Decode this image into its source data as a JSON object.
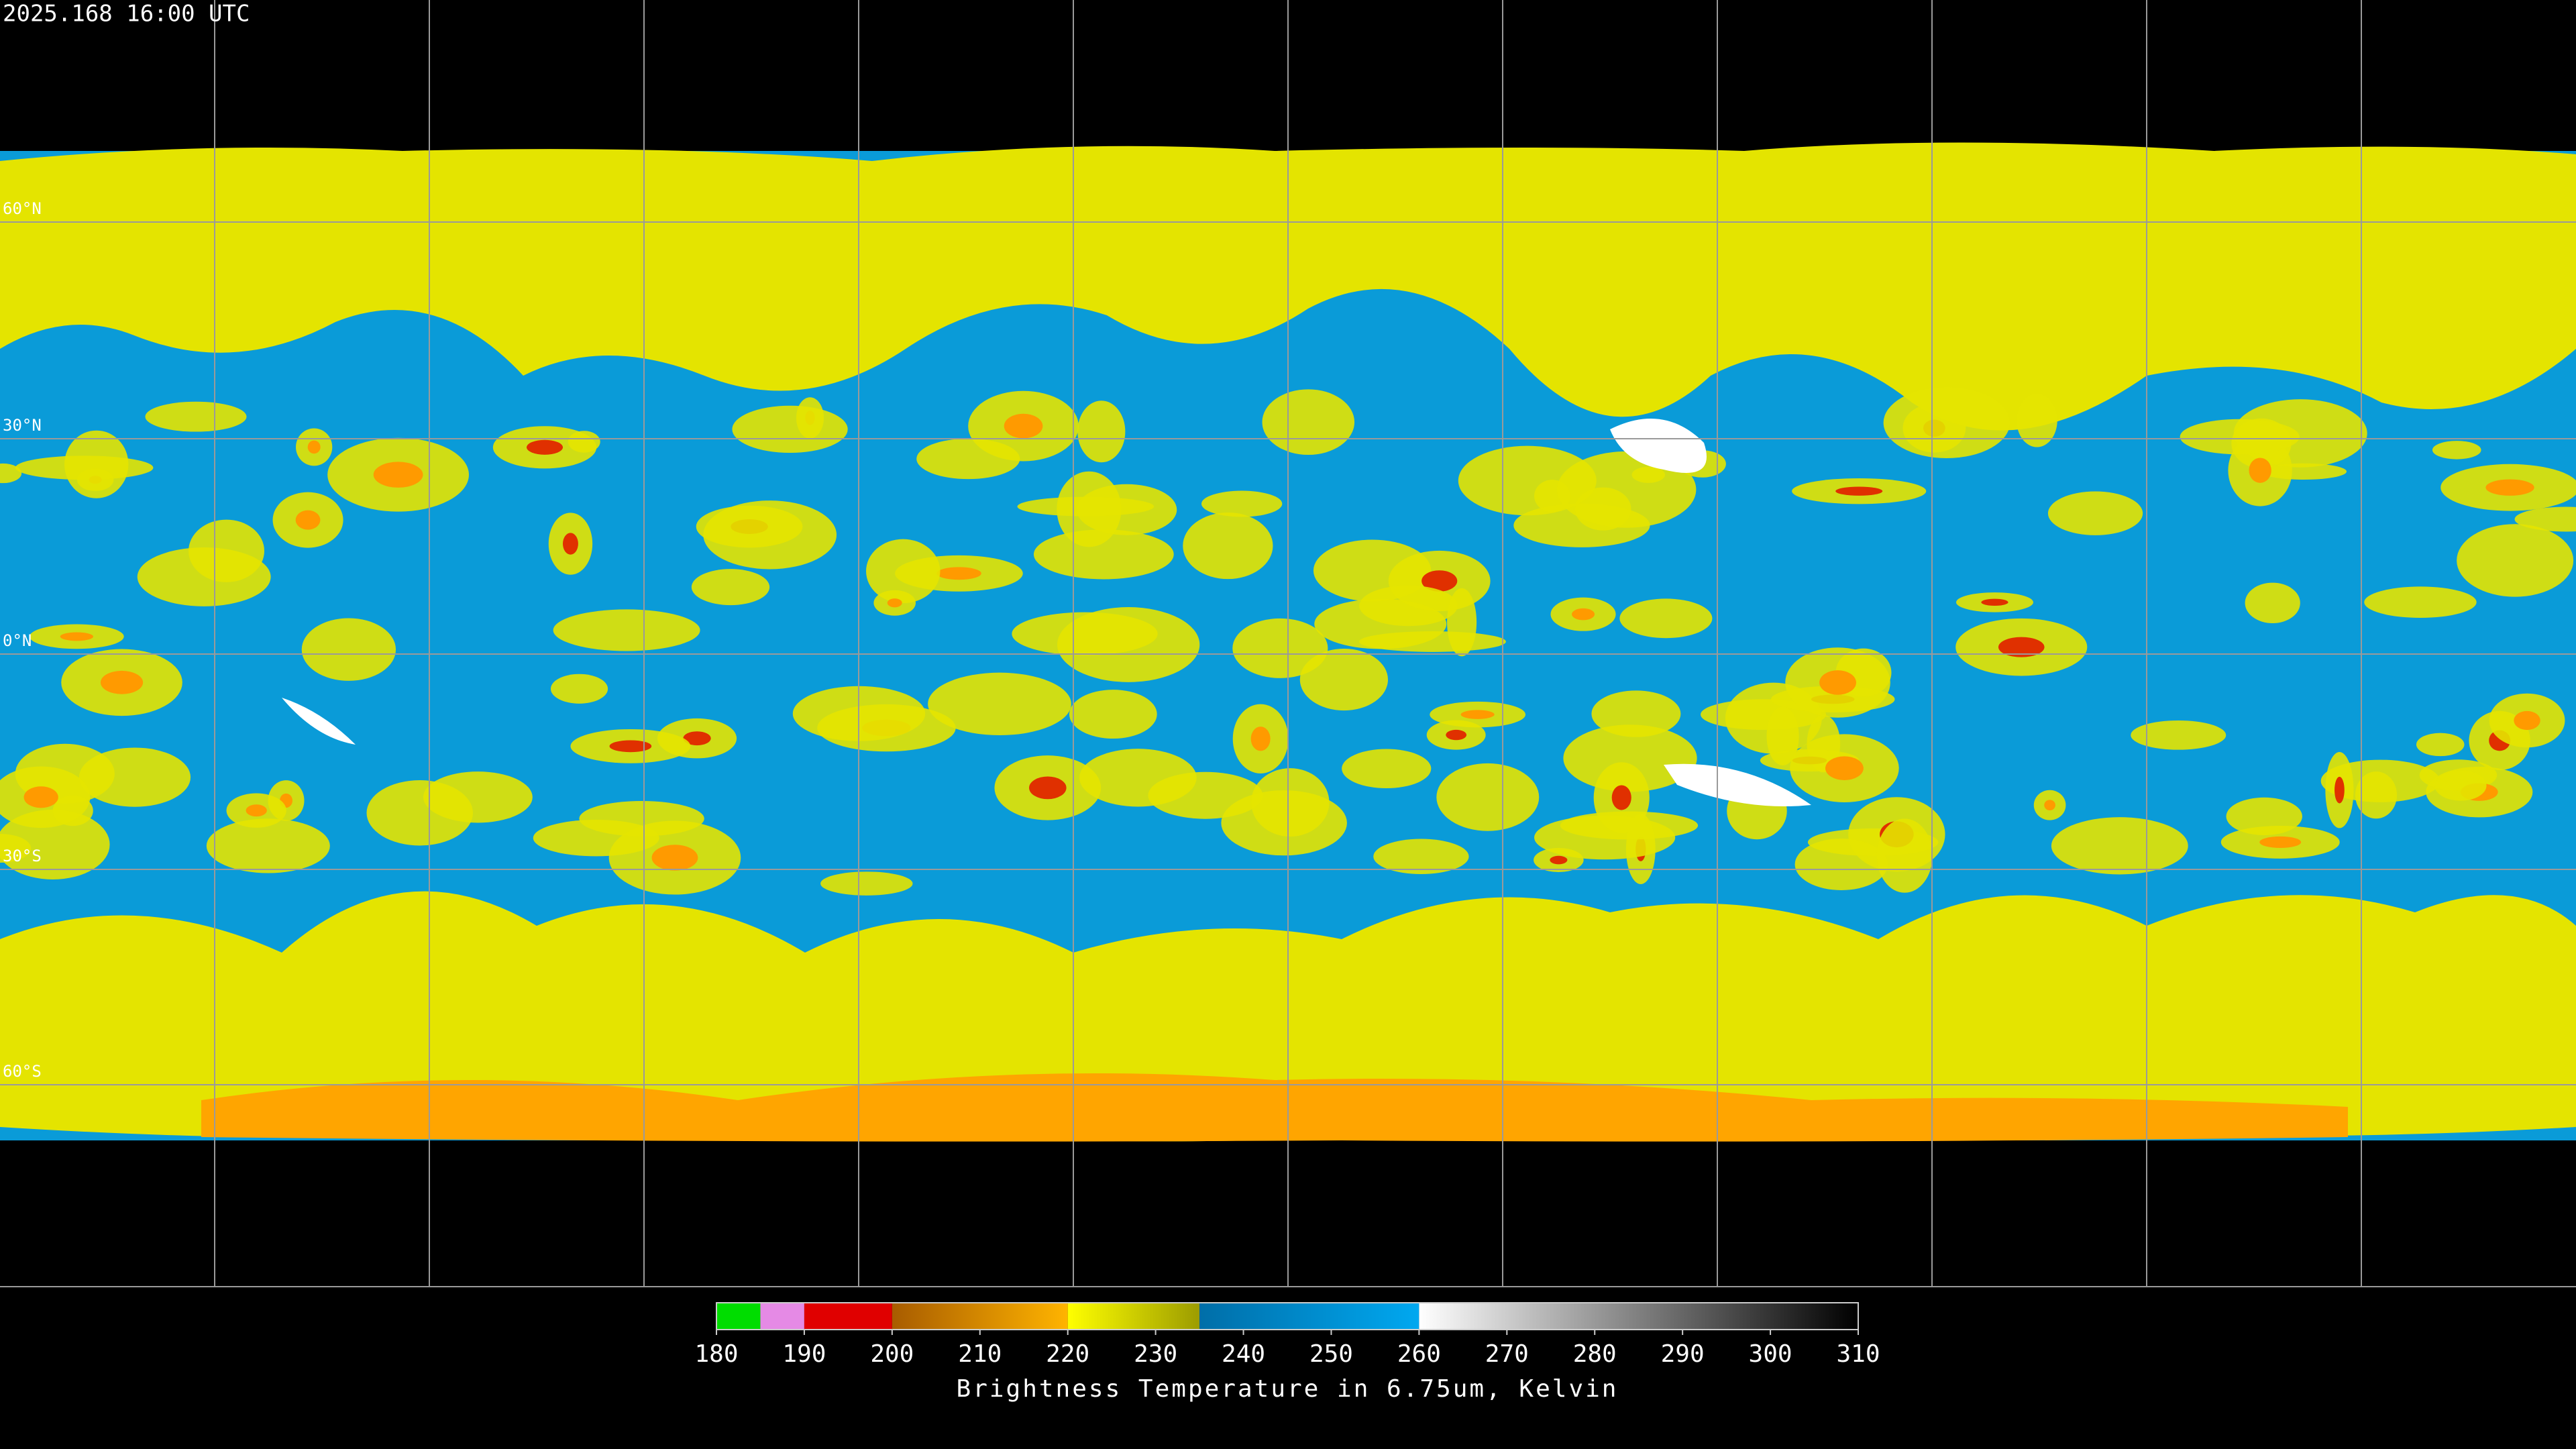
{
  "timestamp": "2025.168 16:00 UTC",
  "lat_labels": [
    "60°N",
    "30°N",
    "0°N",
    "30°S",
    "60°S"
  ],
  "colorbar": {
    "title": "Brightness Temperature in 6.75um, Kelvin",
    "lim": [
      180,
      310
    ],
    "ticks": [
      180,
      190,
      200,
      210,
      220,
      230,
      240,
      250,
      260,
      270,
      280,
      290,
      300,
      310
    ],
    "segments": [
      {
        "from": 180,
        "to": 185,
        "colors": [
          "#00dd00",
          "#00dd00"
        ]
      },
      {
        "from": 185,
        "to": 190,
        "colors": [
          "#e58ae5",
          "#e58ae5"
        ]
      },
      {
        "from": 190,
        "to": 200,
        "colors": [
          "#e00000",
          "#e00000"
        ]
      },
      {
        "from": 200,
        "to": 220,
        "colors": [
          "#a85c00",
          "#ffb400"
        ]
      },
      {
        "from": 220,
        "to": 235,
        "colors": [
          "#ffff00",
          "#9c9c00"
        ]
      },
      {
        "from": 235,
        "to": 260,
        "colors": [
          "#006ea8",
          "#00a8f0"
        ]
      },
      {
        "from": 260,
        "to": 310,
        "colors": [
          "#ffffff",
          "#000000"
        ]
      }
    ]
  }
}
